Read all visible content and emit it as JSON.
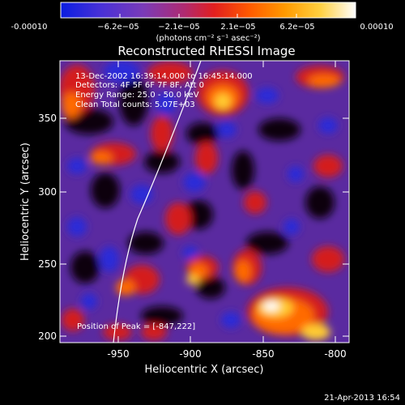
{
  "colorbar": {
    "tick_labels": [
      "-0.00010",
      "−6.2e−05",
      "−2.1e−05",
      "2.1e−05",
      "6.2e−05",
      "0.00010"
    ],
    "units": "(photons cm⁻² s⁻¹ asec⁻²)",
    "colors": [
      "#0a1de0",
      "#4630d8",
      "#7a3bb8",
      "#b02a70",
      "#e21f1f",
      "#ff5a00",
      "#ff9a00",
      "#ffd040",
      "#ffffff"
    ]
  },
  "title": "Reconstructed RHESSI Image",
  "info": {
    "line1": "13-Dec-2002 16:39:14.000 to 16:45:14.000",
    "line2": "Detectors: 4F 5F 6F 7F 8F, Att 0",
    "line3": "Energy Range: 25.0 - 50.0 keV",
    "line4": "Clean    Total counts: 5.07E+03"
  },
  "peak_label": "Position of Peak = [-847,222]",
  "axes": {
    "xlabel": "Heliocentric X (arcsec)",
    "ylabel": "Heliocentric Y (arcsec)",
    "xticks": [
      "-950",
      "-900",
      "-850",
      "-800"
    ],
    "yticks": [
      "200",
      "250",
      "300",
      "350"
    ]
  },
  "timestamp": "21-Apr-2013 16:54"
}
